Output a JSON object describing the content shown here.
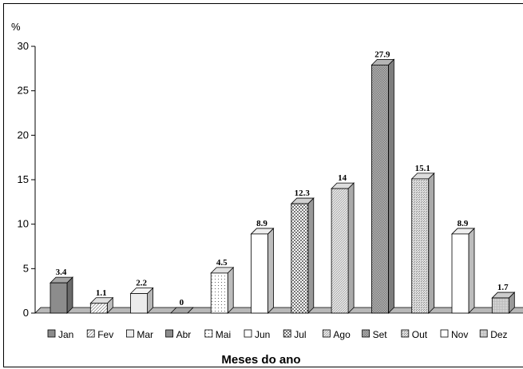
{
  "chart_data": {
    "type": "bar",
    "ylabel": "%",
    "xlabel": "Meses do ano",
    "ylim": [
      0,
      30
    ],
    "yticks": [
      0,
      5,
      10,
      15,
      20,
      25,
      30
    ],
    "categories": [
      "Jan",
      "Fev",
      "Mar",
      "Abr",
      "Mai",
      "Jun",
      "Jul",
      "Ago",
      "Set",
      "Out",
      "Nov",
      "Dez"
    ],
    "values": [
      3.4,
      1.1,
      2.2,
      0,
      4.5,
      8.9,
      12.3,
      14,
      27.9,
      15.1,
      8.9,
      1.7
    ],
    "value_labels": [
      "3.4",
      "1.1",
      "2.2",
      "0",
      "4.5",
      "8.9",
      "12.3",
      "14",
      "27.9",
      "15.1",
      "8.9",
      "1.7"
    ],
    "legend_position": "bottom",
    "grid": false,
    "bar_style": "3d",
    "bar_fills": [
      "dark-gray",
      "diagonal-hatch",
      "light-gray",
      "dark-gray",
      "dotted",
      "white",
      "checker",
      "fine-diagonal",
      "cross-hatch",
      "stippled",
      "white",
      "dense-checker"
    ]
  }
}
